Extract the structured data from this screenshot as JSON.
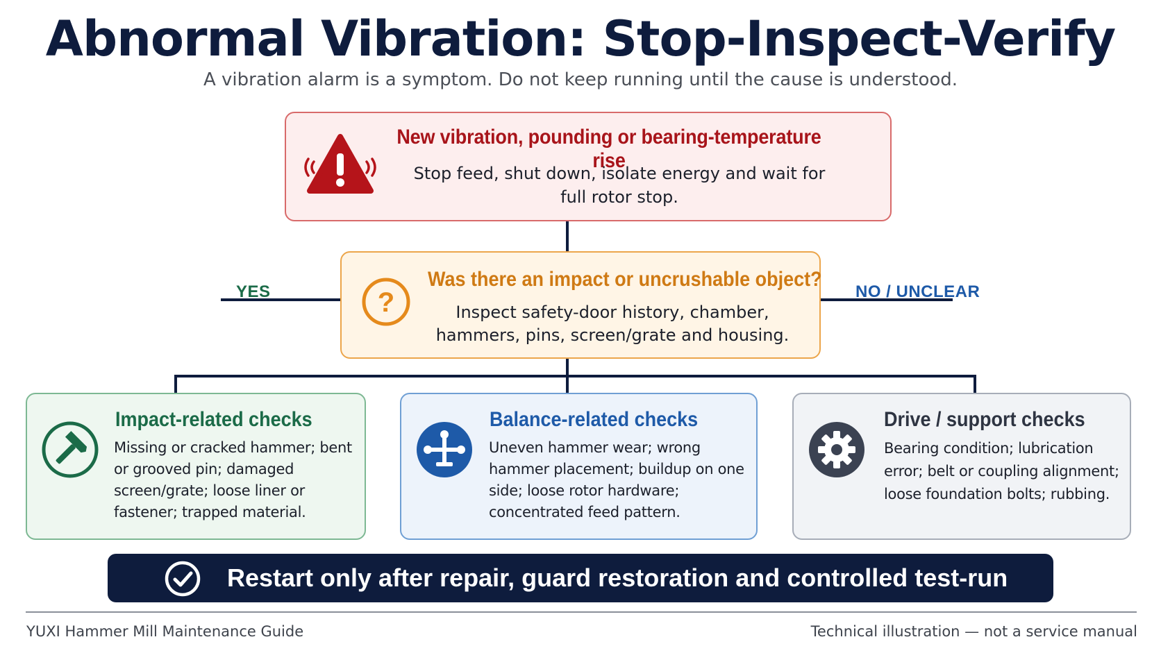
{
  "title": "Abnormal Vibration: Stop-Inspect-Verify",
  "subtitle": "A vibration alarm is a symptom. Do not keep running until the cause is understood.",
  "alert": {
    "title": "New vibration, pounding or bearing-temperature rise",
    "body": "Stop feed, shut down, isolate energy and wait for full rotor stop.",
    "icon": "warning-triangle-icon",
    "color": "#a8141a"
  },
  "question": {
    "title": "Was there an impact or uncrushable object?",
    "body": "Inspect safety-door history, chamber, hammers, pins, screen/grate and housing.",
    "icon": "question-circle-icon",
    "color": "#cf7a14"
  },
  "branches": {
    "yes": "YES",
    "no": "NO / UNCLEAR"
  },
  "checks": [
    {
      "title": "Impact-related checks",
      "body": "Missing or cracked hammer; bent or grooved pin; damaged screen/grate; loose liner or fastener; trapped material.",
      "icon": "hammer-icon",
      "color": "#1b6b48"
    },
    {
      "title": "Balance-related checks",
      "body": "Uneven hammer wear; wrong hammer placement; buildup on one side; loose rotor hardware; concentrated feed pattern.",
      "icon": "balance-icon",
      "color": "#1e5aa8"
    },
    {
      "title": "Drive / support checks",
      "body": "Bearing condition; lubrication error; belt or coupling alignment; loose foundation bolts; rubbing.",
      "icon": "gear-icon",
      "color": "#2e3442"
    }
  ],
  "banner": {
    "text": "Restart only after repair, guard restoration and controlled test-run",
    "icon": "check-circle-icon"
  },
  "footer": {
    "left": "YUXI Hammer Mill Maintenance Guide",
    "right": "Technical illustration — not a service manual"
  }
}
